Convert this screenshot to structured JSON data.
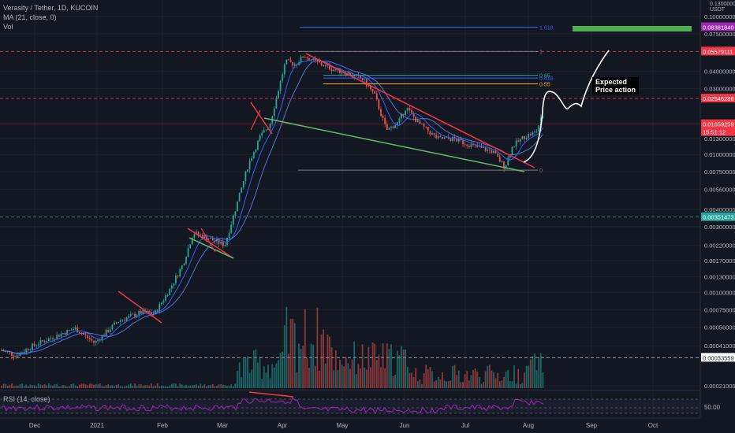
{
  "header": {
    "title": "Verasity / Tether, 1D, KUCOIN",
    "ma_label": "MA (21, close, 0)",
    "vol_label": "Vol",
    "currency": "USDT",
    "top_price": "0.13000000"
  },
  "rsi": {
    "label": "RSI (14, close)",
    "level_label": "50.00"
  },
  "annotation": {
    "line1": "Expected",
    "line2": "Price action"
  },
  "colors": {
    "background": "#131722",
    "bull": "#26a69a",
    "bear": "#ef5350",
    "trendline_red": "#f23645",
    "trendline_green": "#66bb6a",
    "ma": "#2962ff",
    "rsi": "#9c27b0",
    "target_box": "#4caf50"
  },
  "chart_data": {
    "type": "candlestick",
    "scale": "log",
    "price_axis_labels": [
      "0.10000000",
      "0.07500000",
      "0.04000000",
      "0.03000000",
      "0.01300000",
      "0.01000000",
      "0.00750000",
      "0.00560000",
      "0.00400000",
      "0.00300000",
      "0.00220000",
      "0.00170000",
      "0.00130000",
      "0.00100000",
      "0.00075000",
      "0.00056000",
      "0.00041000",
      "0.00021000"
    ],
    "price_markers": [
      {
        "value": "0.08381840",
        "color": "#9c27b0"
      },
      {
        "value": "0.05579111",
        "color": "#f23645"
      },
      {
        "value": "0.02546286",
        "color": "#f23645"
      },
      {
        "value": "0.01659259",
        "color": "#f23645"
      },
      {
        "value": "15:51:12",
        "color": "#f23645"
      },
      {
        "value": "0.00351473",
        "color": "#26a69a"
      },
      {
        "value": "0.00033559",
        "color": "#ffffff"
      }
    ],
    "time_axis_labels": [
      "Dec",
      "2021",
      "Feb",
      "Mar",
      "Apr",
      "May",
      "Jun",
      "Jul",
      "Aug",
      "Sep",
      "Oct"
    ],
    "fib_levels": [
      {
        "label": "1.618",
        "price": 0.0838
      },
      {
        "label": "1",
        "price": 0.0558
      },
      {
        "label": "0.65",
        "price": 0.0375
      },
      {
        "label": "0.618",
        "price": 0.0358
      },
      {
        "label": "0.55",
        "price": 0.0325
      },
      {
        "label": "0",
        "price": 0.0077
      }
    ]
  }
}
